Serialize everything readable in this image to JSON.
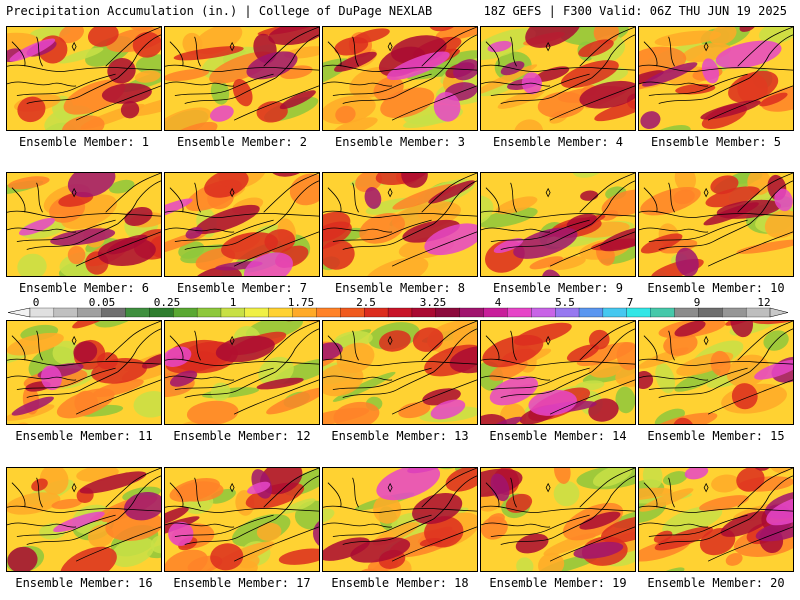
{
  "header": {
    "left": "Precipitation Accumulation (in.) | College of DuPage NEXLAB",
    "right": "18Z GEFS | F300 Valid: 06Z THU JUN 19 2025"
  },
  "members": [
    {
      "label": "Ensemble Member: 1",
      "wet": 0.55
    },
    {
      "label": "Ensemble Member: 2",
      "wet": 0.4
    },
    {
      "label": "Ensemble Member: 3",
      "wet": 0.65
    },
    {
      "label": "Ensemble Member: 4",
      "wet": 0.6
    },
    {
      "label": "Ensemble Member: 5",
      "wet": 0.62
    },
    {
      "label": "Ensemble Member: 6",
      "wet": 0.45
    },
    {
      "label": "Ensemble Member: 7",
      "wet": 0.62
    },
    {
      "label": "Ensemble Member: 8",
      "wet": 0.4
    },
    {
      "label": "Ensemble Member: 9",
      "wet": 0.45
    },
    {
      "label": "Ensemble Member: 10",
      "wet": 0.4
    },
    {
      "label": "Ensemble Member: 11",
      "wet": 0.5
    },
    {
      "label": "Ensemble Member: 12",
      "wet": 0.42
    },
    {
      "label": "Ensemble Member: 13",
      "wet": 0.25
    },
    {
      "label": "Ensemble Member: 14",
      "wet": 0.7
    },
    {
      "label": "Ensemble Member: 15",
      "wet": 0.4
    },
    {
      "label": "Ensemble Member: 16",
      "wet": 0.25
    },
    {
      "label": "Ensemble Member: 17",
      "wet": 0.6
    },
    {
      "label": "Ensemble Member: 18",
      "wet": 0.42
    },
    {
      "label": "Ensemble Member: 19",
      "wet": 0.45
    },
    {
      "label": "Ensemble Member: 20",
      "wet": 0.65
    }
  ],
  "colorbar": {
    "tick_labels": [
      "0",
      "0.05",
      "0.25",
      "1",
      "1.75",
      "2.5",
      "3.25",
      "4",
      "5.5",
      "7",
      "9",
      "12"
    ],
    "colors": [
      "#e0e0e0",
      "#c0c0c0",
      "#a0a0a0",
      "#707070",
      "#3f8f3f",
      "#2e7d2e",
      "#5aa832",
      "#8ec83c",
      "#c8e046",
      "#f0f046",
      "#ffd232",
      "#ffaa28",
      "#ff8228",
      "#f05a1e",
      "#dc2d1e",
      "#c81428",
      "#aa0a32",
      "#8c0a3c",
      "#a0146e",
      "#c81e9b",
      "#e646c8",
      "#c864e6",
      "#9678f0",
      "#5a96f0",
      "#46c8f0",
      "#32e6e6",
      "#46c8aa",
      "#8c8c8c",
      "#6e6e6e",
      "#969696",
      "#bebebe"
    ]
  }
}
